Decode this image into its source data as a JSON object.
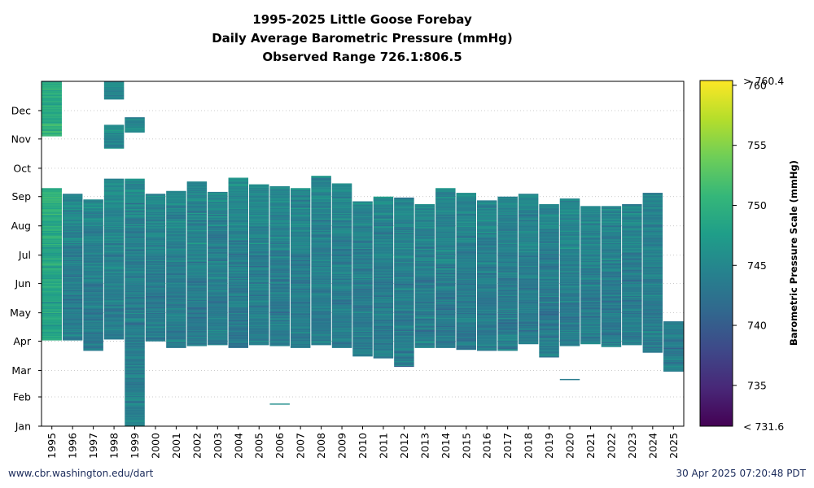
{
  "chart_data": {
    "type": "heatmap",
    "title_lines": [
      "1995-2025 Little Goose Forebay",
      "Daily Average Barometric Pressure (mmHg)",
      "Observed Range 726.1:806.5"
    ],
    "x_categories": [
      "1995",
      "1996",
      "1997",
      "1998",
      "1999",
      "2000",
      "2001",
      "2002",
      "2003",
      "2004",
      "2005",
      "2006",
      "2007",
      "2008",
      "2009",
      "2010",
      "2011",
      "2012",
      "2013",
      "2014",
      "2015",
      "2016",
      "2017",
      "2018",
      "2019",
      "2020",
      "2021",
      "2022",
      "2023",
      "2024",
      "2025"
    ],
    "y_ticks": [
      "Jan",
      "Feb",
      "Mar",
      "Apr",
      "May",
      "Jun",
      "Jul",
      "Aug",
      "Sep",
      "Oct",
      "Nov",
      "Dec"
    ],
    "y_tick_days": [
      1,
      32,
      60,
      91,
      121,
      152,
      182,
      213,
      244,
      274,
      305,
      335
    ],
    "y_range_days": [
      1,
      366
    ],
    "coverage": [
      {
        "year": "1995",
        "segments": [
          [
            92,
            253
          ],
          [
            308,
            367
          ]
        ]
      },
      {
        "year": "1996",
        "segments": [
          [
            92,
            247
          ]
        ]
      },
      {
        "year": "1997",
        "segments": [
          [
            81,
            241
          ]
        ]
      },
      {
        "year": "1998",
        "segments": [
          [
            93,
            263
          ],
          [
            295,
            320
          ],
          [
            347,
            368
          ]
        ]
      },
      {
        "year": "1999",
        "segments": [
          [
            1,
            263
          ],
          [
            312,
            328
          ]
        ]
      },
      {
        "year": "2000",
        "segments": [
          [
            91,
            247
          ]
        ]
      },
      {
        "year": "2001",
        "segments": [
          [
            84,
            250
          ]
        ]
      },
      {
        "year": "2002",
        "segments": [
          [
            86,
            260
          ]
        ]
      },
      {
        "year": "2003",
        "segments": [
          [
            87,
            249
          ]
        ]
      },
      {
        "year": "2004",
        "segments": [
          [
            84,
            264
          ]
        ]
      },
      {
        "year": "2005",
        "segments": [
          [
            87,
            257
          ]
        ]
      },
      {
        "year": "2006",
        "segments": [
          [
            86,
            255
          ]
        ]
      },
      {
        "year": "2007",
        "segments": [
          [
            84,
            253
          ]
        ]
      },
      {
        "year": "2008",
        "segments": [
          [
            87,
            266
          ]
        ]
      },
      {
        "year": "2009",
        "segments": [
          [
            84,
            258
          ]
        ]
      },
      {
        "year": "2010",
        "segments": [
          [
            75,
            239
          ]
        ]
      },
      {
        "year": "2011",
        "segments": [
          [
            73,
            244
          ]
        ]
      },
      {
        "year": "2012",
        "segments": [
          [
            64,
            243
          ]
        ]
      },
      {
        "year": "2013",
        "segments": [
          [
            84,
            236
          ]
        ]
      },
      {
        "year": "2014",
        "segments": [
          [
            84,
            253
          ]
        ]
      },
      {
        "year": "2015",
        "segments": [
          [
            82,
            248
          ]
        ]
      },
      {
        "year": "2016",
        "segments": [
          [
            81,
            240
          ]
        ]
      },
      {
        "year": "2017",
        "segments": [
          [
            81,
            244
          ]
        ]
      },
      {
        "year": "2018",
        "segments": [
          [
            88,
            247
          ]
        ]
      },
      {
        "year": "2019",
        "segments": [
          [
            74,
            236
          ]
        ]
      },
      {
        "year": "2020",
        "segments": [
          [
            86,
            242
          ],
          [
            50,
            51
          ]
        ]
      },
      {
        "year": "2021",
        "segments": [
          [
            88,
            234
          ]
        ]
      },
      {
        "year": "2022",
        "segments": [
          [
            85,
            234
          ]
        ]
      },
      {
        "year": "2023",
        "segments": [
          [
            87,
            236
          ]
        ]
      },
      {
        "year": "2024",
        "segments": [
          [
            79,
            248
          ]
        ]
      },
      {
        "year": "2025",
        "segments": [
          [
            59,
            112
          ]
        ]
      },
      {
        "year": "2006",
        "segments": [
          [
            24,
            25
          ]
        ]
      }
    ],
    "colorbar": {
      "label": "Barometric Pressure Scale (mmHg)",
      "min": 731.6,
      "max": 760.4,
      "ticks": [
        735,
        740,
        745,
        750,
        755,
        760
      ],
      "low_label": "< 731.6",
      "high_label": "> 760.4",
      "colormap": "viridis"
    },
    "grid": true
  },
  "footer": {
    "left": "www.cbr.washington.edu/dart",
    "right": "30 Apr 2025 07:20:48 PDT"
  },
  "colors": {
    "footer_text": "#1a2a5a",
    "viridis": [
      "#440154",
      "#482878",
      "#3e4989",
      "#31688e",
      "#26828e",
      "#1f9e89",
      "#35b779",
      "#6ece58",
      "#b5de2b",
      "#fde725"
    ]
  }
}
